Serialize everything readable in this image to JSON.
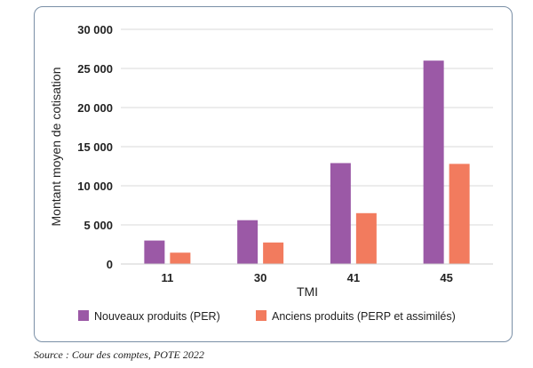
{
  "chart_data": {
    "type": "bar",
    "title": "",
    "xlabel": "TMI",
    "ylabel": "Montant moyen de cotisation",
    "categories": [
      "11",
      "30",
      "41",
      "45"
    ],
    "series": [
      {
        "name": "Nouveaux produits (PER)",
        "color": "#9b59a6",
        "values": [
          3000,
          5600,
          12900,
          26000
        ]
      },
      {
        "name": "Anciens produits (PERP et assimilés)",
        "color": "#f27b5e",
        "values": [
          1450,
          2750,
          6500,
          12800
        ]
      }
    ],
    "ylim": [
      0,
      30000
    ],
    "yticks": [
      0,
      5000,
      10000,
      15000,
      20000,
      25000,
      30000
    ],
    "ytick_labels": [
      "0",
      "5 000",
      "10 000",
      "15 000",
      "20 000",
      "25 000",
      "30 000"
    ],
    "grid": true,
    "legend_position": "bottom"
  },
  "source": "Source : Cour des comptes, POTE 2022"
}
